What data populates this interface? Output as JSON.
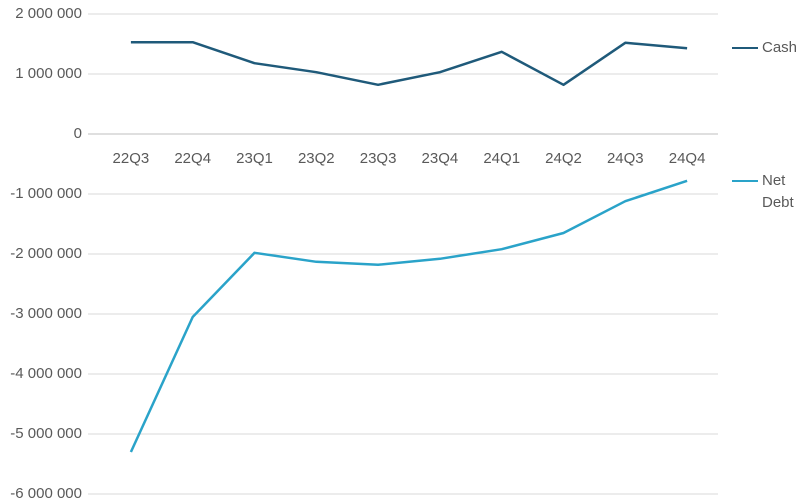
{
  "chart_data": {
    "type": "line",
    "categories": [
      "22Q3",
      "22Q4",
      "23Q1",
      "23Q2",
      "23Q3",
      "23Q4",
      "24Q1",
      "24Q2",
      "24Q3",
      "24Q4"
    ],
    "series": [
      {
        "name": "Cash",
        "color": "#1f5a7a",
        "values": [
          1530000,
          1530000,
          1180000,
          1030000,
          820000,
          1030000,
          1370000,
          820000,
          1520000,
          1430000
        ]
      },
      {
        "name": "Net Debt",
        "color": "#2aa3c9",
        "values": [
          -5300000,
          -3050000,
          -1980000,
          -2130000,
          -2180000,
          -2080000,
          -1920000,
          -1650000,
          -1120000,
          -780000
        ]
      }
    ],
    "ylim": [
      -6000000,
      2000000
    ],
    "yticks": [
      {
        "value": -6000000,
        "label": "-6 000 000"
      },
      {
        "value": -5000000,
        "label": "-5 000 000"
      },
      {
        "value": -4000000,
        "label": "-4 000 000"
      },
      {
        "value": -3000000,
        "label": "-3 000 000"
      },
      {
        "value": -2000000,
        "label": "-2 000 000"
      },
      {
        "value": -1000000,
        "label": "-1 000 000"
      },
      0,
      {
        "value": 1000000,
        "label": "1 000 000"
      },
      {
        "value": 2000000,
        "label": "2 000 000"
      }
    ],
    "grid": true,
    "legend": "right"
  }
}
